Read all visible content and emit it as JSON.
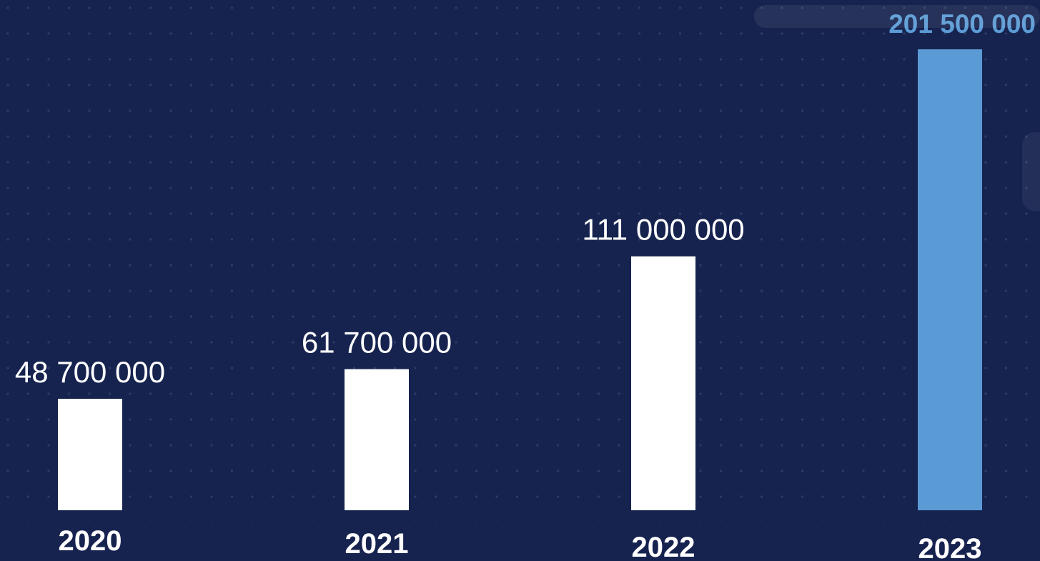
{
  "chart_data": {
    "type": "bar",
    "title": "",
    "xlabel": "",
    "ylabel": "",
    "categories": [
      "2020",
      "2021",
      "2022",
      "2023"
    ],
    "values": [
      48700000,
      61700000,
      111000000,
      201500000
    ],
    "value_labels": [
      "48 700 000",
      "61 700 000",
      "111 000 000",
      "201 500 000"
    ],
    "ylim": [
      0,
      201500000
    ],
    "grid": false,
    "legend": "none",
    "colors": {
      "background": "#17234f",
      "bar_default": "#ffffff",
      "bar_highlight": "#5b9bd5",
      "label_default": "#ffffff",
      "label_highlight": "#5b9bd5",
      "dots": "#2e3b68"
    },
    "highlight_index": 3
  }
}
